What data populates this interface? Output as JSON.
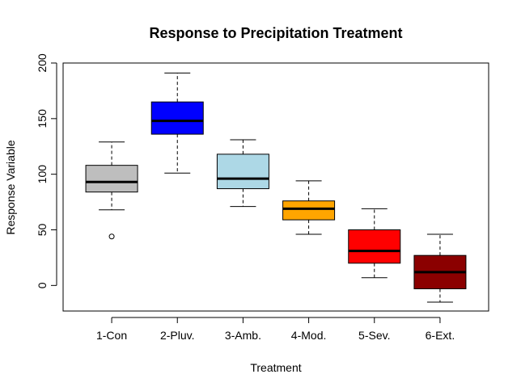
{
  "chart_data": {
    "type": "boxplot",
    "title": "Response to Precipitation Treatment",
    "xlabel": "Treatment",
    "ylabel": "Response Variable",
    "ylim": [
      -23,
      200
    ],
    "yticks": [
      "0",
      "50",
      "100",
      "150",
      "200"
    ],
    "grid": false,
    "legend": "none",
    "categories": [
      "1-Con",
      "2-Pluv.",
      "3-Amb.",
      "4-Mod.",
      "5-Sev.",
      "6-Ext."
    ],
    "boxes": [
      {
        "category": "1-Con",
        "color": "#bebebe",
        "whisker_low": 68,
        "q1": 84,
        "median": 93,
        "q3": 108,
        "whisker_high": 129,
        "outliers": [
          44
        ]
      },
      {
        "category": "2-Pluv.",
        "color": "#0000ff",
        "whisker_low": 101,
        "q1": 136,
        "median": 148,
        "q3": 165,
        "whisker_high": 191,
        "outliers": []
      },
      {
        "category": "3-Amb.",
        "color": "#add8e6",
        "whisker_low": 71,
        "q1": 87,
        "median": 96,
        "q3": 118,
        "whisker_high": 131,
        "outliers": []
      },
      {
        "category": "4-Mod.",
        "color": "#ffa500",
        "whisker_low": 46,
        "q1": 59,
        "median": 69,
        "q3": 76,
        "whisker_high": 94,
        "outliers": []
      },
      {
        "category": "5-Sev.",
        "color": "#ff0000",
        "whisker_low": 7,
        "q1": 20,
        "median": 31,
        "q3": 50,
        "whisker_high": 69,
        "outliers": []
      },
      {
        "category": "6-Ext.",
        "color": "#8b0000",
        "whisker_low": -15,
        "q1": -3,
        "median": 12,
        "q3": 27,
        "whisker_high": 46,
        "outliers": []
      }
    ]
  }
}
